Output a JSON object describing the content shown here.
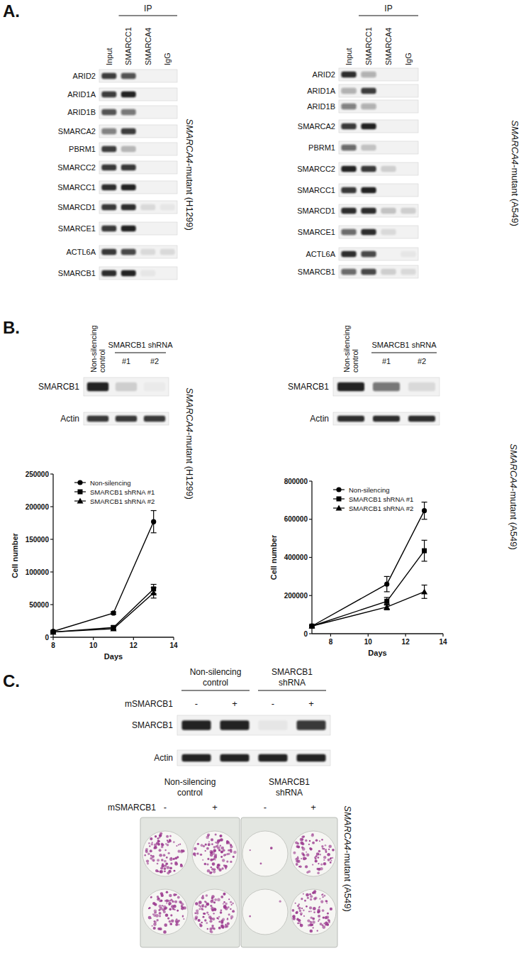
{
  "panel_a": {
    "letter": "A.",
    "blots": [
      {
        "ip_label": "IP",
        "lanes": [
          "Input",
          "SMARCC1",
          "SMARCA4",
          "IgG"
        ],
        "cell_line": "SMARCA4-mutant (H1299)",
        "rows": [
          {
            "label": "ARID2",
            "bands": [
              0.8,
              0.7,
              0,
              0
            ]
          },
          {
            "label": "ARID1A",
            "bands": [
              0.8,
              0.95,
              0,
              0
            ]
          },
          {
            "label": "ARID1B",
            "bands": [
              0.7,
              0.55,
              0,
              0
            ]
          },
          {
            "label": "SMARCA2",
            "bands": [
              0.5,
              0.8,
              0,
              0
            ]
          },
          {
            "label": "PBRM1",
            "bands": [
              0.8,
              0.25,
              0,
              0
            ]
          },
          {
            "label": "SMARCC2",
            "bands": [
              0.85,
              0.85,
              0,
              0
            ]
          },
          {
            "label": "SMARCC1",
            "bands": [
              0.9,
              0.95,
              0,
              0
            ]
          },
          {
            "label": "SMARCD1",
            "bands": [
              0.85,
              0.9,
              0.1,
              0.05
            ]
          },
          {
            "label": "SMARCE1",
            "bands": [
              0.85,
              0.95,
              0,
              0
            ]
          },
          {
            "label": "ACTL6A",
            "bands": [
              0.85,
              0.75,
              0.1,
              0.1
            ]
          },
          {
            "label": "SMARCB1",
            "bands": [
              0.9,
              0.95,
              0.05,
              0
            ]
          }
        ]
      },
      {
        "ip_label": "IP",
        "lanes": [
          "Input",
          "SMARCC1",
          "SMARCA4",
          "IgG"
        ],
        "cell_line": "SMARCA4-mutant (A549)",
        "rows": [
          {
            "label": "ARID2",
            "bands": [
              0.9,
              0.3,
              0,
              0
            ]
          },
          {
            "label": "ARID1A",
            "bands": [
              0.3,
              0.8,
              0,
              0
            ]
          },
          {
            "label": "ARID1B",
            "bands": [
              0.5,
              0.3,
              0,
              0
            ]
          },
          {
            "label": "SMARCA2",
            "bands": [
              0.85,
              0.95,
              0,
              0
            ]
          },
          {
            "label": "PBRM1",
            "bands": [
              0.6,
              0.2,
              0,
              0
            ]
          },
          {
            "label": "SMARCC2",
            "bands": [
              0.95,
              0.85,
              0.15,
              0
            ]
          },
          {
            "label": "SMARCC1",
            "bands": [
              0.85,
              0.95,
              0,
              0
            ]
          },
          {
            "label": "SMARCD1",
            "bands": [
              0.9,
              0.9,
              0.2,
              0.15
            ]
          },
          {
            "label": "SMARCE1",
            "bands": [
              0.6,
              0.9,
              0.1,
              0
            ]
          },
          {
            "label": "ACTL6A",
            "bands": [
              0.9,
              0.75,
              0,
              0.05
            ]
          },
          {
            "label": "SMARCB1",
            "bands": [
              0.6,
              0.75,
              0.15,
              0.1
            ]
          }
        ]
      }
    ]
  },
  "panel_b": {
    "letter": "B.",
    "blots": [
      {
        "control_label": "Non-silencing control",
        "group_label": "SMARCB1 shRNA",
        "group_lanes": [
          "#1",
          "#2"
        ],
        "cell_line": "SMARCA4-mutant (H1299)",
        "rows": [
          {
            "label": "SMARCB1",
            "bands": [
              0.95,
              0.15,
              0.03
            ]
          },
          {
            "label": "Actin",
            "bands": [
              0.85,
              0.85,
              0.85
            ]
          }
        ]
      },
      {
        "control_label": "Non-silencing control",
        "group_label": "SMARCB1 shRNA",
        "group_lanes": [
          "#1",
          "#2"
        ],
        "cell_line": "SMARCA4-mutant (A549)",
        "rows": [
          {
            "label": "SMARCB1",
            "bands": [
              0.95,
              0.55,
              0.1
            ]
          },
          {
            "label": "Actin",
            "bands": [
              0.9,
              0.9,
              0.9
            ]
          }
        ]
      }
    ]
  },
  "panel_c": {
    "letter": "C.",
    "cell_line": "SMARCA4-mutant (A549)",
    "blot": {
      "groups": [
        "Non-silencing control",
        "SMARCB1 shRNA"
      ],
      "factor": "mSMARCB1",
      "signs": [
        "-",
        "+",
        "-",
        "+"
      ],
      "rows": [
        {
          "label": "SMARCB1",
          "bands": [
            0.95,
            0.95,
            0.05,
            0.85
          ]
        },
        {
          "label": "Actin",
          "bands": [
            0.95,
            0.95,
            0.95,
            0.95
          ]
        }
      ]
    },
    "plates": {
      "groups": [
        "Non-silencing control",
        "SMARCB1 shRNA"
      ],
      "factor": "mSMARCB1",
      "signs": [
        "-",
        "+",
        "-",
        "+"
      ],
      "colony_density": [
        [
          0.8,
          0.85,
          0.03,
          0.75
        ],
        [
          0.85,
          0.9,
          0.02,
          0.8
        ]
      ]
    }
  },
  "chart_data": [
    {
      "type": "line",
      "x": [
        8,
        11,
        13
      ],
      "xlim": [
        8,
        14
      ],
      "xticks": [
        8,
        10,
        12,
        14
      ],
      "ylim": [
        0,
        250000
      ],
      "yticks": [
        0,
        50000,
        100000,
        150000,
        200000,
        250000
      ],
      "x_label": "Days",
      "y_label": "Cell number",
      "grid": false,
      "legend": "upper-left",
      "series": [
        {
          "name": "Non-silencing",
          "color": "#000000",
          "marker": "circle",
          "line_style": "solid",
          "values": [
            9000,
            37000,
            177000
          ],
          "errors": [
            1000,
            2000,
            17000
          ]
        },
        {
          "name": "SMARCB1 shRNA #1",
          "color": "#000000",
          "marker": "square",
          "line_style": "solid",
          "values": [
            8000,
            15000,
            74000
          ],
          "errors": [
            800,
            2500,
            7000
          ]
        },
        {
          "name": "SMARCB1 shRNA #2",
          "color": "#000000",
          "marker": "triangle",
          "line_style": "solid",
          "values": [
            8000,
            13000,
            68000
          ],
          "errors": [
            800,
            2000,
            8000
          ]
        }
      ]
    },
    {
      "type": "line",
      "x": [
        7,
        11,
        13
      ],
      "xlim": [
        7,
        14
      ],
      "xticks": [
        8,
        10,
        12,
        14
      ],
      "ylim": [
        0,
        800000
      ],
      "yticks": [
        0,
        200000,
        400000,
        600000,
        800000
      ],
      "x_label": "Days",
      "y_label": "Cell number",
      "grid": false,
      "legend": "upper-left",
      "series": [
        {
          "name": "Non-silencing",
          "color": "#000000",
          "marker": "circle",
          "line_style": "solid",
          "values": [
            40000,
            260000,
            645000
          ],
          "errors": [
            5000,
            40000,
            45000
          ]
        },
        {
          "name": "SMARCB1 shRNA #1",
          "color": "#000000",
          "marker": "square",
          "line_style": "solid",
          "values": [
            40000,
            170000,
            435000
          ],
          "errors": [
            5000,
            20000,
            55000
          ]
        },
        {
          "name": "SMARCB1 shRNA #2",
          "color": "#000000",
          "marker": "triangle",
          "line_style": "solid",
          "values": [
            40000,
            140000,
            220000
          ],
          "errors": [
            5000,
            15000,
            35000
          ]
        }
      ]
    }
  ]
}
